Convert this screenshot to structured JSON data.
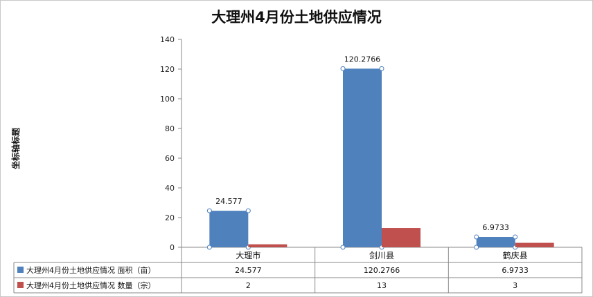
{
  "chart_data": {
    "type": "bar",
    "title": "大理州4月份土地供应情况",
    "ylabel": "坐标轴标题",
    "xlabel": "",
    "ylim": [
      0,
      140
    ],
    "yticks": [
      0,
      20,
      40,
      60,
      80,
      100,
      120,
      140
    ],
    "grid": "horizontal-off",
    "categories": [
      "大理市",
      "剑川县",
      "鹤庆县"
    ],
    "series": [
      {
        "name": "大理州4月份土地供应情况 面积（亩）",
        "values": [
          24.577,
          120.2766,
          6.9733
        ],
        "labels": [
          "24.577",
          "120.2766",
          "6.9733"
        ],
        "color": "#4f81bd"
      },
      {
        "name": "大理州4月份土地供应情况 数量（宗）",
        "values": [
          2,
          13,
          3
        ],
        "labels": [
          "2",
          "13",
          "3"
        ],
        "color": "#c0504d"
      }
    ],
    "data_labels_series": 0,
    "data_table": true
  }
}
